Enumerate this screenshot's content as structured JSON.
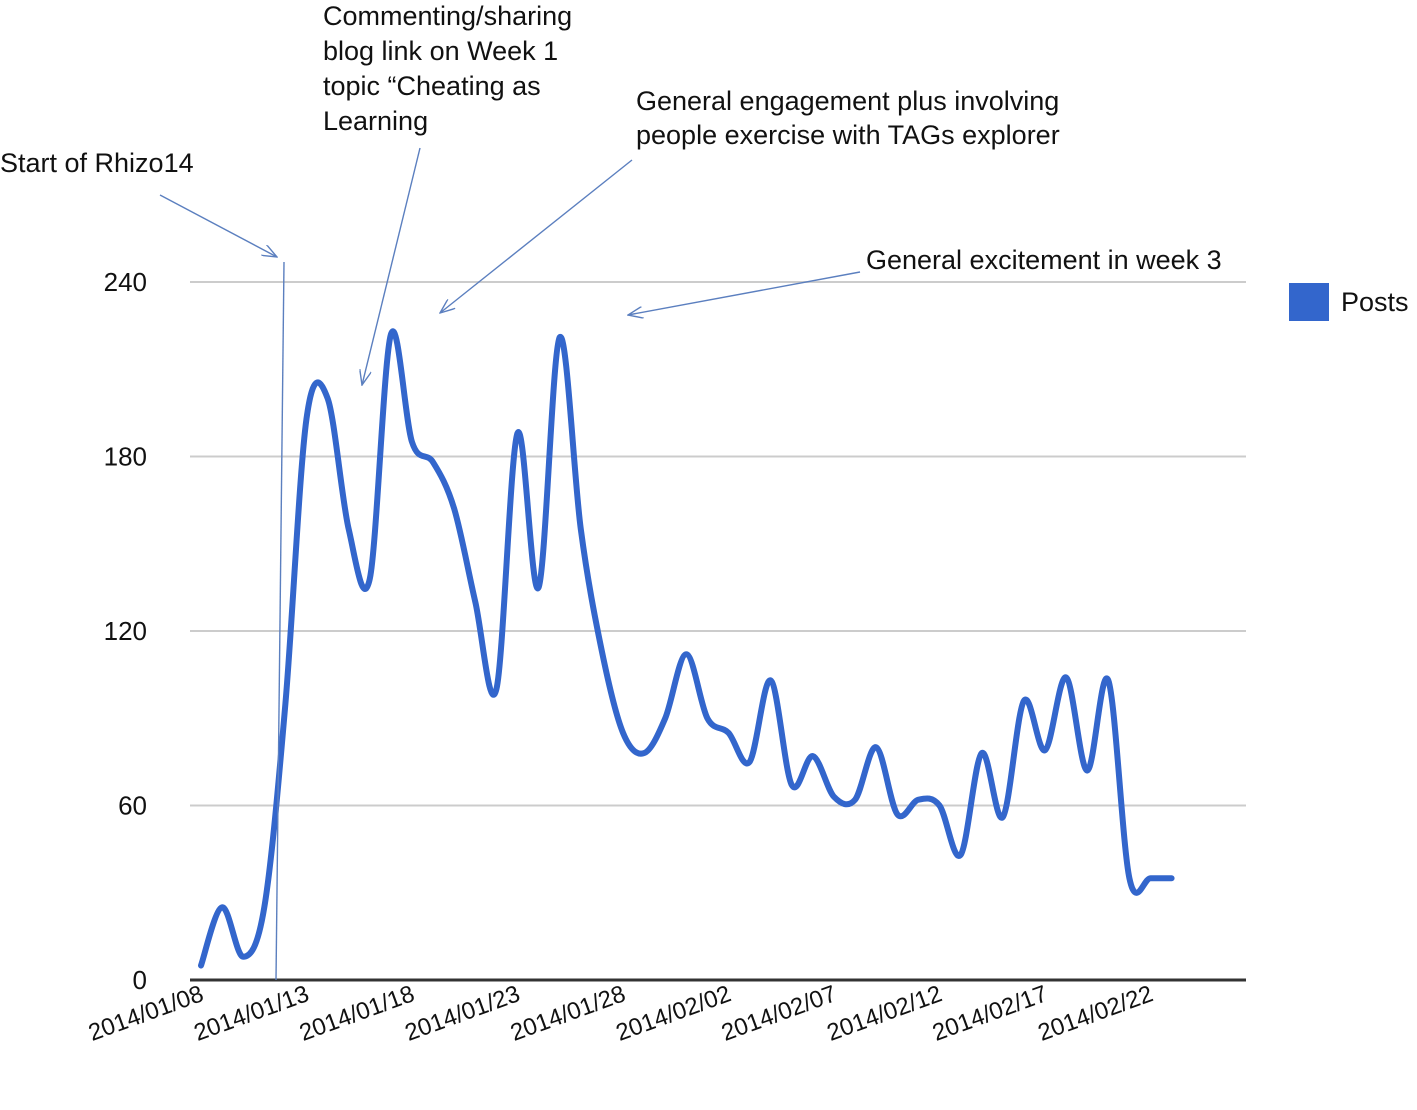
{
  "chart_data": {
    "type": "line",
    "title": "",
    "xlabel": "",
    "ylabel": "",
    "ylim": [
      0,
      240
    ],
    "yticks": [
      "0",
      "60",
      "120",
      "180",
      "240"
    ],
    "grid": true,
    "legend_position": "right",
    "xticks": [
      "2014/01/08",
      "2014/01/13",
      "2014/01/18",
      "2014/01/23",
      "2014/01/28",
      "2014/02/02",
      "2014/02/07",
      "2014/02/12",
      "2014/02/17",
      "2014/02/22"
    ],
    "series": [
      {
        "name": "Posts",
        "color": "#3366cc",
        "x": [
          "2014/01/08",
          "2014/01/09",
          "2014/01/10",
          "2014/01/11",
          "2014/01/12",
          "2014/01/13",
          "2014/01/14",
          "2014/01/15",
          "2014/01/16",
          "2014/01/17",
          "2014/01/18",
          "2014/01/19",
          "2014/01/20",
          "2014/01/21",
          "2014/01/22",
          "2014/01/23",
          "2014/01/24",
          "2014/01/25",
          "2014/01/26",
          "2014/01/27",
          "2014/01/28",
          "2014/01/29",
          "2014/01/30",
          "2014/01/31",
          "2014/02/01",
          "2014/02/02",
          "2014/02/03",
          "2014/02/04",
          "2014/02/05",
          "2014/02/06",
          "2014/02/07",
          "2014/02/08",
          "2014/02/09",
          "2014/02/10",
          "2014/02/11",
          "2014/02/12",
          "2014/02/13",
          "2014/02/14",
          "2014/02/15",
          "2014/02/16",
          "2014/02/17",
          "2014/02/18",
          "2014/02/19",
          "2014/02/20",
          "2014/02/21",
          "2014/02/22",
          "2014/02/23",
          "2014/02/24"
        ],
        "values": [
          5,
          25,
          8,
          25,
          95,
          193,
          200,
          155,
          138,
          222,
          185,
          178,
          162,
          130,
          100,
          188,
          135,
          221,
          155,
          113,
          85,
          78,
          90,
          112,
          90,
          85,
          75,
          103,
          67,
          77,
          63,
          62,
          80,
          57,
          62,
          60,
          43,
          78,
          56,
          96,
          79,
          104,
          72,
          103,
          35,
          35,
          35,
          35
        ]
      }
    ],
    "annotations": [
      {
        "lines": [
          "Start of Rhizo14"
        ]
      },
      {
        "lines": [
          "Commenting/sharing",
          "blog link on Week 1",
          "topic “Cheating as",
          "Learning"
        ]
      },
      {
        "lines": [
          "General engagement plus involving",
          "people exercise with TAGs explorer"
        ]
      },
      {
        "lines": [
          "General excitement in week 3"
        ]
      }
    ]
  }
}
